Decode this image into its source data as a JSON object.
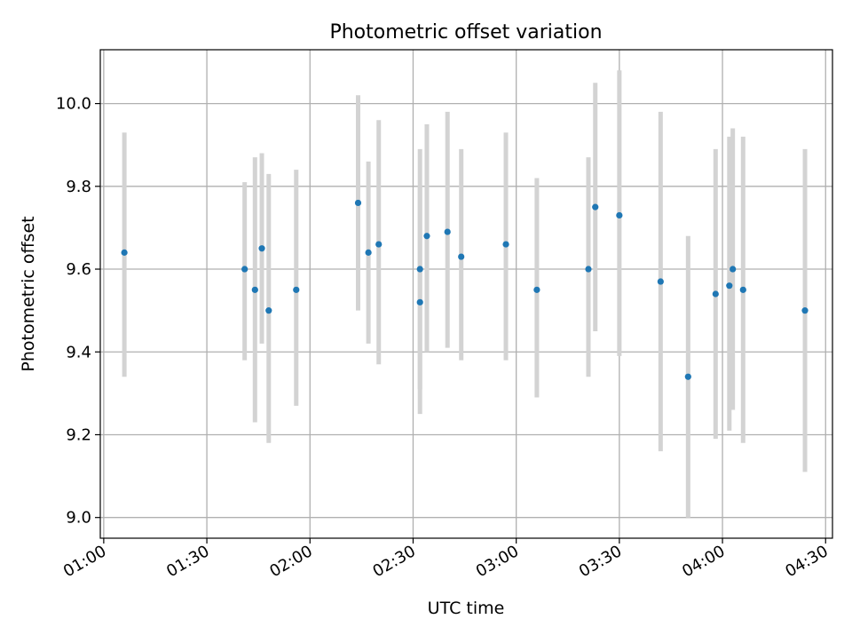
{
  "chart_data": {
    "type": "scatter",
    "title": "Photometric offset variation",
    "xlabel": "UTC time",
    "ylabel": "Photometric offset",
    "xlim": [
      "00:59",
      "04:32"
    ],
    "ylim": [
      8.95,
      10.13
    ],
    "x_ticks": [
      "01:00",
      "01:30",
      "02:00",
      "02:30",
      "03:00",
      "03:30",
      "04:00",
      "04:30"
    ],
    "y_ticks": [
      9.0,
      9.2,
      9.4,
      9.6,
      9.8,
      10.0
    ],
    "y_tick_labels": [
      "9.0",
      "9.2",
      "9.4",
      "9.6",
      "9.8",
      "10.0"
    ],
    "grid": true,
    "colors": {
      "marker": "#1f77b4",
      "errorbar": "#d3d3d3",
      "grid": "#b0b0b0"
    },
    "points": [
      {
        "x": "01:06",
        "y": 9.64,
        "err_low": 9.34,
        "err_high": 9.93
      },
      {
        "x": "01:41",
        "y": 9.6,
        "err_low": 9.38,
        "err_high": 9.81
      },
      {
        "x": "01:44",
        "y": 9.55,
        "err_low": 9.23,
        "err_high": 9.87
      },
      {
        "x": "01:46",
        "y": 9.65,
        "err_low": 9.42,
        "err_high": 9.88
      },
      {
        "x": "01:48",
        "y": 9.5,
        "err_low": 9.18,
        "err_high": 9.83
      },
      {
        "x": "01:56",
        "y": 9.55,
        "err_low": 9.27,
        "err_high": 9.84
      },
      {
        "x": "02:14",
        "y": 9.76,
        "err_low": 9.5,
        "err_high": 10.02
      },
      {
        "x": "02:17",
        "y": 9.64,
        "err_low": 9.42,
        "err_high": 9.86
      },
      {
        "x": "02:20",
        "y": 9.66,
        "err_low": 9.37,
        "err_high": 9.96
      },
      {
        "x": "02:32",
        "y": 9.6,
        "err_low": 9.31,
        "err_high": 9.89
      },
      {
        "x": "02:32",
        "y": 9.52,
        "err_low": 9.25,
        "err_high": 9.8
      },
      {
        "x": "02:34",
        "y": 9.68,
        "err_low": 9.4,
        "err_high": 9.95
      },
      {
        "x": "02:40",
        "y": 9.69,
        "err_low": 9.41,
        "err_high": 9.98
      },
      {
        "x": "02:44",
        "y": 9.63,
        "err_low": 9.38,
        "err_high": 9.89
      },
      {
        "x": "02:57",
        "y": 9.66,
        "err_low": 9.38,
        "err_high": 9.93
      },
      {
        "x": "03:06",
        "y": 9.55,
        "err_low": 9.29,
        "err_high": 9.82
      },
      {
        "x": "03:21",
        "y": 9.6,
        "err_low": 9.34,
        "err_high": 9.87
      },
      {
        "x": "03:23",
        "y": 9.75,
        "err_low": 9.45,
        "err_high": 10.05
      },
      {
        "x": "03:30",
        "y": 9.73,
        "err_low": 9.39,
        "err_high": 10.08
      },
      {
        "x": "03:42",
        "y": 9.57,
        "err_low": 9.16,
        "err_high": 9.98
      },
      {
        "x": "03:50",
        "y": 9.34,
        "err_low": 9.0,
        "err_high": 9.68
      },
      {
        "x": "03:58",
        "y": 9.54,
        "err_low": 9.19,
        "err_high": 9.89
      },
      {
        "x": "04:02",
        "y": 9.56,
        "err_low": 9.21,
        "err_high": 9.92
      },
      {
        "x": "04:03",
        "y": 9.6,
        "err_low": 9.26,
        "err_high": 9.94
      },
      {
        "x": "04:06",
        "y": 9.55,
        "err_low": 9.18,
        "err_high": 9.92
      },
      {
        "x": "04:24",
        "y": 9.5,
        "err_low": 9.11,
        "err_high": 9.89
      }
    ]
  }
}
